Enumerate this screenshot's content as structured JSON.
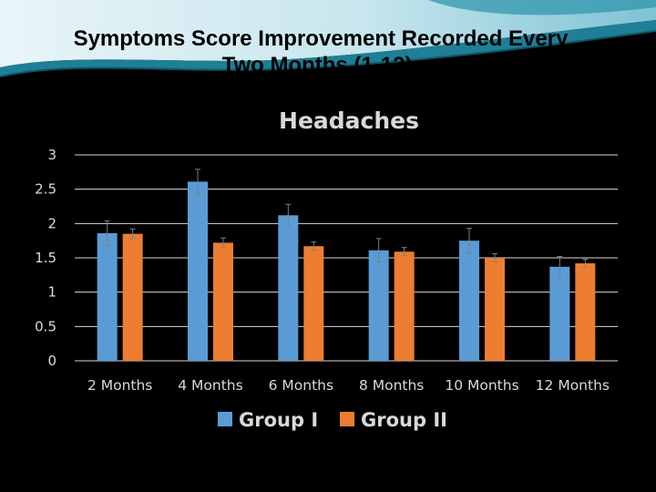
{
  "slide": {
    "title_line1": "Symptoms Score Improvement Recorded Every",
    "title_line2": "Two Months (1-12):"
  },
  "colors": {
    "background": "#000000",
    "header_light": "#dceef4",
    "header_teal": "#1e7f96",
    "group1": "#5b9bd5",
    "group2": "#ed7d31",
    "text": "#d9d9d9"
  },
  "chart_data": {
    "type": "bar",
    "title": "Headaches",
    "xlabel": "",
    "ylabel": "",
    "ylim": [
      0,
      3
    ],
    "yticks": [
      0,
      0.5,
      1,
      1.5,
      2,
      2.5,
      3
    ],
    "ytick_labels": [
      "0",
      "0.5",
      "1",
      "1.5",
      "2",
      "2.5",
      "3"
    ],
    "grid": true,
    "legend_position": "bottom",
    "categories": [
      "2 Months",
      "4 Months",
      "6 Months",
      "8 Months",
      "10 Months",
      "12 Months"
    ],
    "series": [
      {
        "name": "Group I",
        "color": "#5b9bd5",
        "values": [
          1.86,
          2.61,
          2.12,
          1.61,
          1.75,
          1.37
        ],
        "errors": [
          0.18,
          0.18,
          0.16,
          0.17,
          0.18,
          0.15
        ]
      },
      {
        "name": "Group II",
        "color": "#ed7d31",
        "values": [
          1.85,
          1.72,
          1.67,
          1.59,
          1.5,
          1.42
        ],
        "errors": [
          0.07,
          0.07,
          0.06,
          0.06,
          0.06,
          0.06
        ]
      }
    ]
  }
}
